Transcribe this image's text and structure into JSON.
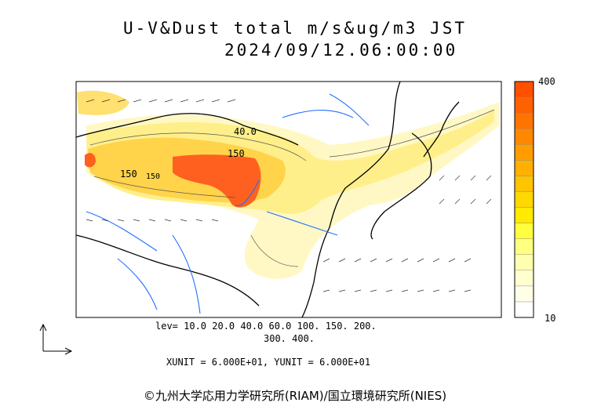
{
  "title_line1": "U-V&Dust total m/s&ug/m3 JST",
  "title_line2": "2024/09/12.06:00:00",
  "colorbar": {
    "max_label": "400",
    "min_label": "10",
    "colors": [
      "#ffffff",
      "#ffffe8",
      "#ffffd0",
      "#ffffb0",
      "#ffff80",
      "#ffff40",
      "#ffea00",
      "#ffd800",
      "#ffc400",
      "#ffb000",
      "#ff9c00",
      "#ff8800",
      "#ff7400",
      "#ff6000",
      "#ff5000"
    ]
  },
  "levels_line1": "lev= 10.0 20.0 40.0 60.0 100. 150. 200.",
  "levels_line2": "300. 400.",
  "units_text": "XUNIT = 6.000E+01, YUNIT = 6.000E+01",
  "copyright": "©九州大学応用力学研究所(RIAM)/国立環境研究所(NIES)",
  "contour_labels": [
    "40.0",
    "150",
    "150",
    "150"
  ]
}
